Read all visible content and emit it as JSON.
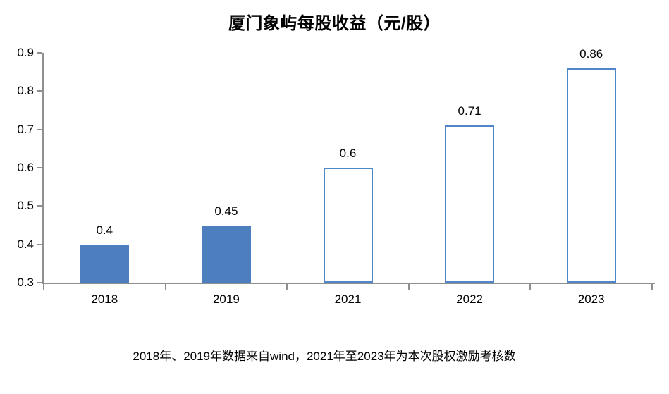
{
  "title": "厦门象屿每股收益（元/股）",
  "footer_note": "2018年、2019年数据来自wind，2021年至2023年为本次股权激励考核数",
  "colors": {
    "bar_fill": "#4d7ebd",
    "bar_outline": "#4e86c8",
    "axis": "#8f8f8f",
    "text": "#000000",
    "background": "#ffffff"
  },
  "chart_data": {
    "type": "bar",
    "title": "厦门象屿每股收益（元/股）",
    "categories": [
      "2018",
      "2019",
      "2021",
      "2022",
      "2023"
    ],
    "values": [
      0.4,
      0.45,
      0.6,
      0.71,
      0.86
    ],
    "data_labels": [
      "0.4",
      "0.45",
      "0.6",
      "0.71",
      "0.86"
    ],
    "bar_styles": [
      "filled",
      "filled",
      "outlined",
      "outlined",
      "outlined"
    ],
    "xlabel": "",
    "ylabel": "",
    "ylim": [
      0.3,
      0.9
    ],
    "ytick_values": [
      0.3,
      0.4,
      0.5,
      0.6,
      0.7,
      0.8,
      0.9
    ],
    "ytick_labels": [
      "0.3",
      "0.4",
      "0.5",
      "0.6",
      "0.7",
      "0.8",
      "0.9"
    ],
    "grid": false,
    "legend": false,
    "annotation": "2018年、2019年数据来自wind，2021年至2023年为本次股权激励考核数"
  }
}
